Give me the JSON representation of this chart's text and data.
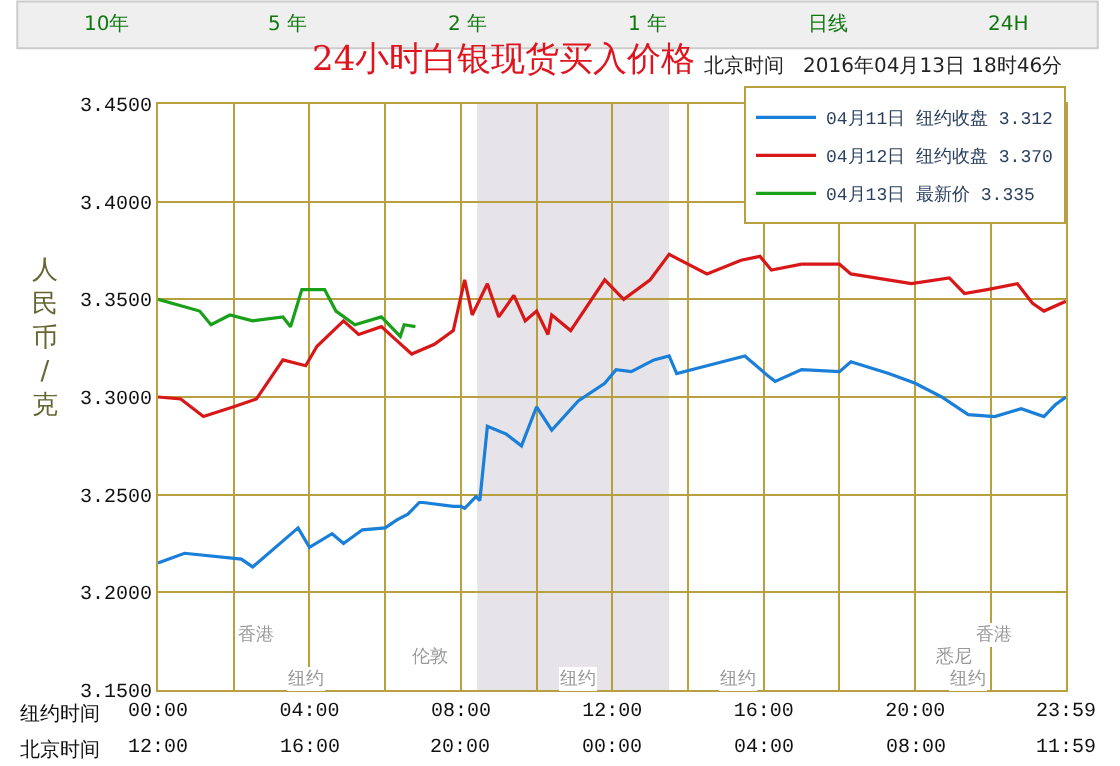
{
  "chart_data": {
    "type": "line",
    "title": "24小时白银现货买入价格",
    "subtitle": "北京时间   2016年04月13日 18时46分",
    "ylabel": "人民币/克",
    "xlabel": "纽约时间",
    "xlim": [
      0,
      23.983
    ],
    "ylim": [
      3.15,
      3.45
    ],
    "xticks": [
      {
        "value": 0,
        "label": "00:00"
      },
      {
        "value": 2,
        "label": null
      },
      {
        "value": 4,
        "label": "04:00"
      },
      {
        "value": 6,
        "label": null
      },
      {
        "value": 8,
        "label": "08:00"
      },
      {
        "value": 10,
        "label": null
      },
      {
        "value": 12,
        "label": "12:00"
      },
      {
        "value": 14,
        "label": null
      },
      {
        "value": 16,
        "label": "16:00"
      },
      {
        "value": 18,
        "label": null
      },
      {
        "value": 20,
        "label": "20:00"
      },
      {
        "value": 22,
        "label": null
      },
      {
        "value": 23.983,
        "label": "23:59"
      }
    ],
    "yticks": [
      {
        "value": 3.15,
        "label": "3.1500"
      },
      {
        "value": 3.2,
        "label": "3.2000"
      },
      {
        "value": 3.25,
        "label": "3.2500"
      },
      {
        "value": 3.3,
        "label": "3.3000"
      },
      {
        "value": 3.35,
        "label": "3.3500"
      },
      {
        "value": 3.4,
        "label": "3.4000"
      },
      {
        "value": 3.45,
        "label": "3.4500"
      }
    ],
    "grid": true,
    "legend": "top right",
    "marker": "none",
    "line_style": "solid",
    "bands": [
      {
        "axis": "x",
        "from": 8.43,
        "to": 13.5,
        "color": "#e6e4e8"
      }
    ],
    "series": [
      {
        "name": "04月11日 纽约收盘 3.312",
        "color": "#1a7fd8",
        "x": [
          0,
          0.7,
          2.2,
          2.5,
          3.7,
          4,
          4.6,
          4.9,
          5.4,
          6,
          6.3,
          6.6,
          6.9,
          7,
          7.8,
          8,
          8.1,
          8.4,
          8.5,
          8.7,
          9.2,
          9.6,
          10,
          10.4,
          11.1,
          11.8,
          12.1,
          12.5,
          13.1,
          13.5,
          13.7,
          14.5,
          15.5,
          16.1,
          16.3,
          17,
          18,
          18.3,
          19.3,
          20,
          20.7,
          21.4,
          22.1,
          22.8,
          23.4,
          23.7,
          23.98
        ],
        "values": [
          3.215,
          3.22,
          3.217,
          3.213,
          3.233,
          3.223,
          3.23,
          3.225,
          3.232,
          3.233,
          3.237,
          3.24,
          3.246,
          3.246,
          3.244,
          3.244,
          3.243,
          3.249,
          3.247,
          3.285,
          3.281,
          3.275,
          3.295,
          3.283,
          3.298,
          3.307,
          3.314,
          3.313,
          3.319,
          3.321,
          3.312,
          3.316,
          3.321,
          3.311,
          3.308,
          3.314,
          3.313,
          3.318,
          3.312,
          3.307,
          3.3,
          3.291,
          3.29,
          3.294,
          3.29,
          3.296,
          3.3
        ]
      },
      {
        "name": "04月12日 纽约收盘 3.370",
        "color": "#d81818",
        "x": [
          0,
          0.6,
          1.2,
          2,
          2.6,
          3.3,
          3.9,
          4.2,
          4.9,
          5.3,
          5.9,
          6.3,
          6.7,
          7.3,
          7.8,
          8.1,
          8.3,
          8.7,
          9,
          9.4,
          9.7,
          10,
          10.3,
          10.4,
          10.9,
          11.8,
          12.3,
          13,
          13.5,
          14.5,
          15.4,
          15.9,
          16.2,
          17,
          18,
          18.3,
          19.9,
          20.9,
          21.3,
          21.9,
          22.7,
          23.1,
          23.4,
          23.98
        ],
        "values": [
          3.3,
          3.299,
          3.29,
          3.295,
          3.299,
          3.319,
          3.316,
          3.326,
          3.339,
          3.332,
          3.336,
          3.329,
          3.322,
          3.327,
          3.334,
          3.36,
          3.342,
          3.358,
          3.341,
          3.352,
          3.339,
          3.344,
          3.332,
          3.342,
          3.334,
          3.36,
          3.35,
          3.36,
          3.373,
          3.363,
          3.37,
          3.372,
          3.365,
          3.368,
          3.368,
          3.363,
          3.358,
          3.361,
          3.353,
          3.355,
          3.358,
          3.348,
          3.344,
          3.349
        ]
      },
      {
        "name": "04月13日 最新价 3.335",
        "color": "#18a018",
        "x": [
          0,
          1.1,
          1.4,
          1.9,
          2.5,
          3.3,
          3.5,
          3.8,
          4.4,
          4.7,
          5.2,
          5.9,
          6.4,
          6.5,
          6.8
        ],
        "values": [
          3.35,
          3.344,
          3.337,
          3.342,
          3.339,
          3.341,
          3.336,
          3.355,
          3.355,
          3.344,
          3.337,
          3.341,
          3.331,
          3.337,
          3.336
        ]
      }
    ],
    "annotations": [
      "10年",
      "5 年",
      "2 年",
      "1 年",
      "日线",
      "24H",
      "香港",
      "伦敦",
      "纽约",
      "纽约",
      "纽约",
      "悉尼",
      "香港",
      "纽约",
      "北京时间",
      "12:00",
      "16:00",
      "20:00",
      "00:00",
      "04:00",
      "08:00",
      "11:59"
    ]
  }
}
